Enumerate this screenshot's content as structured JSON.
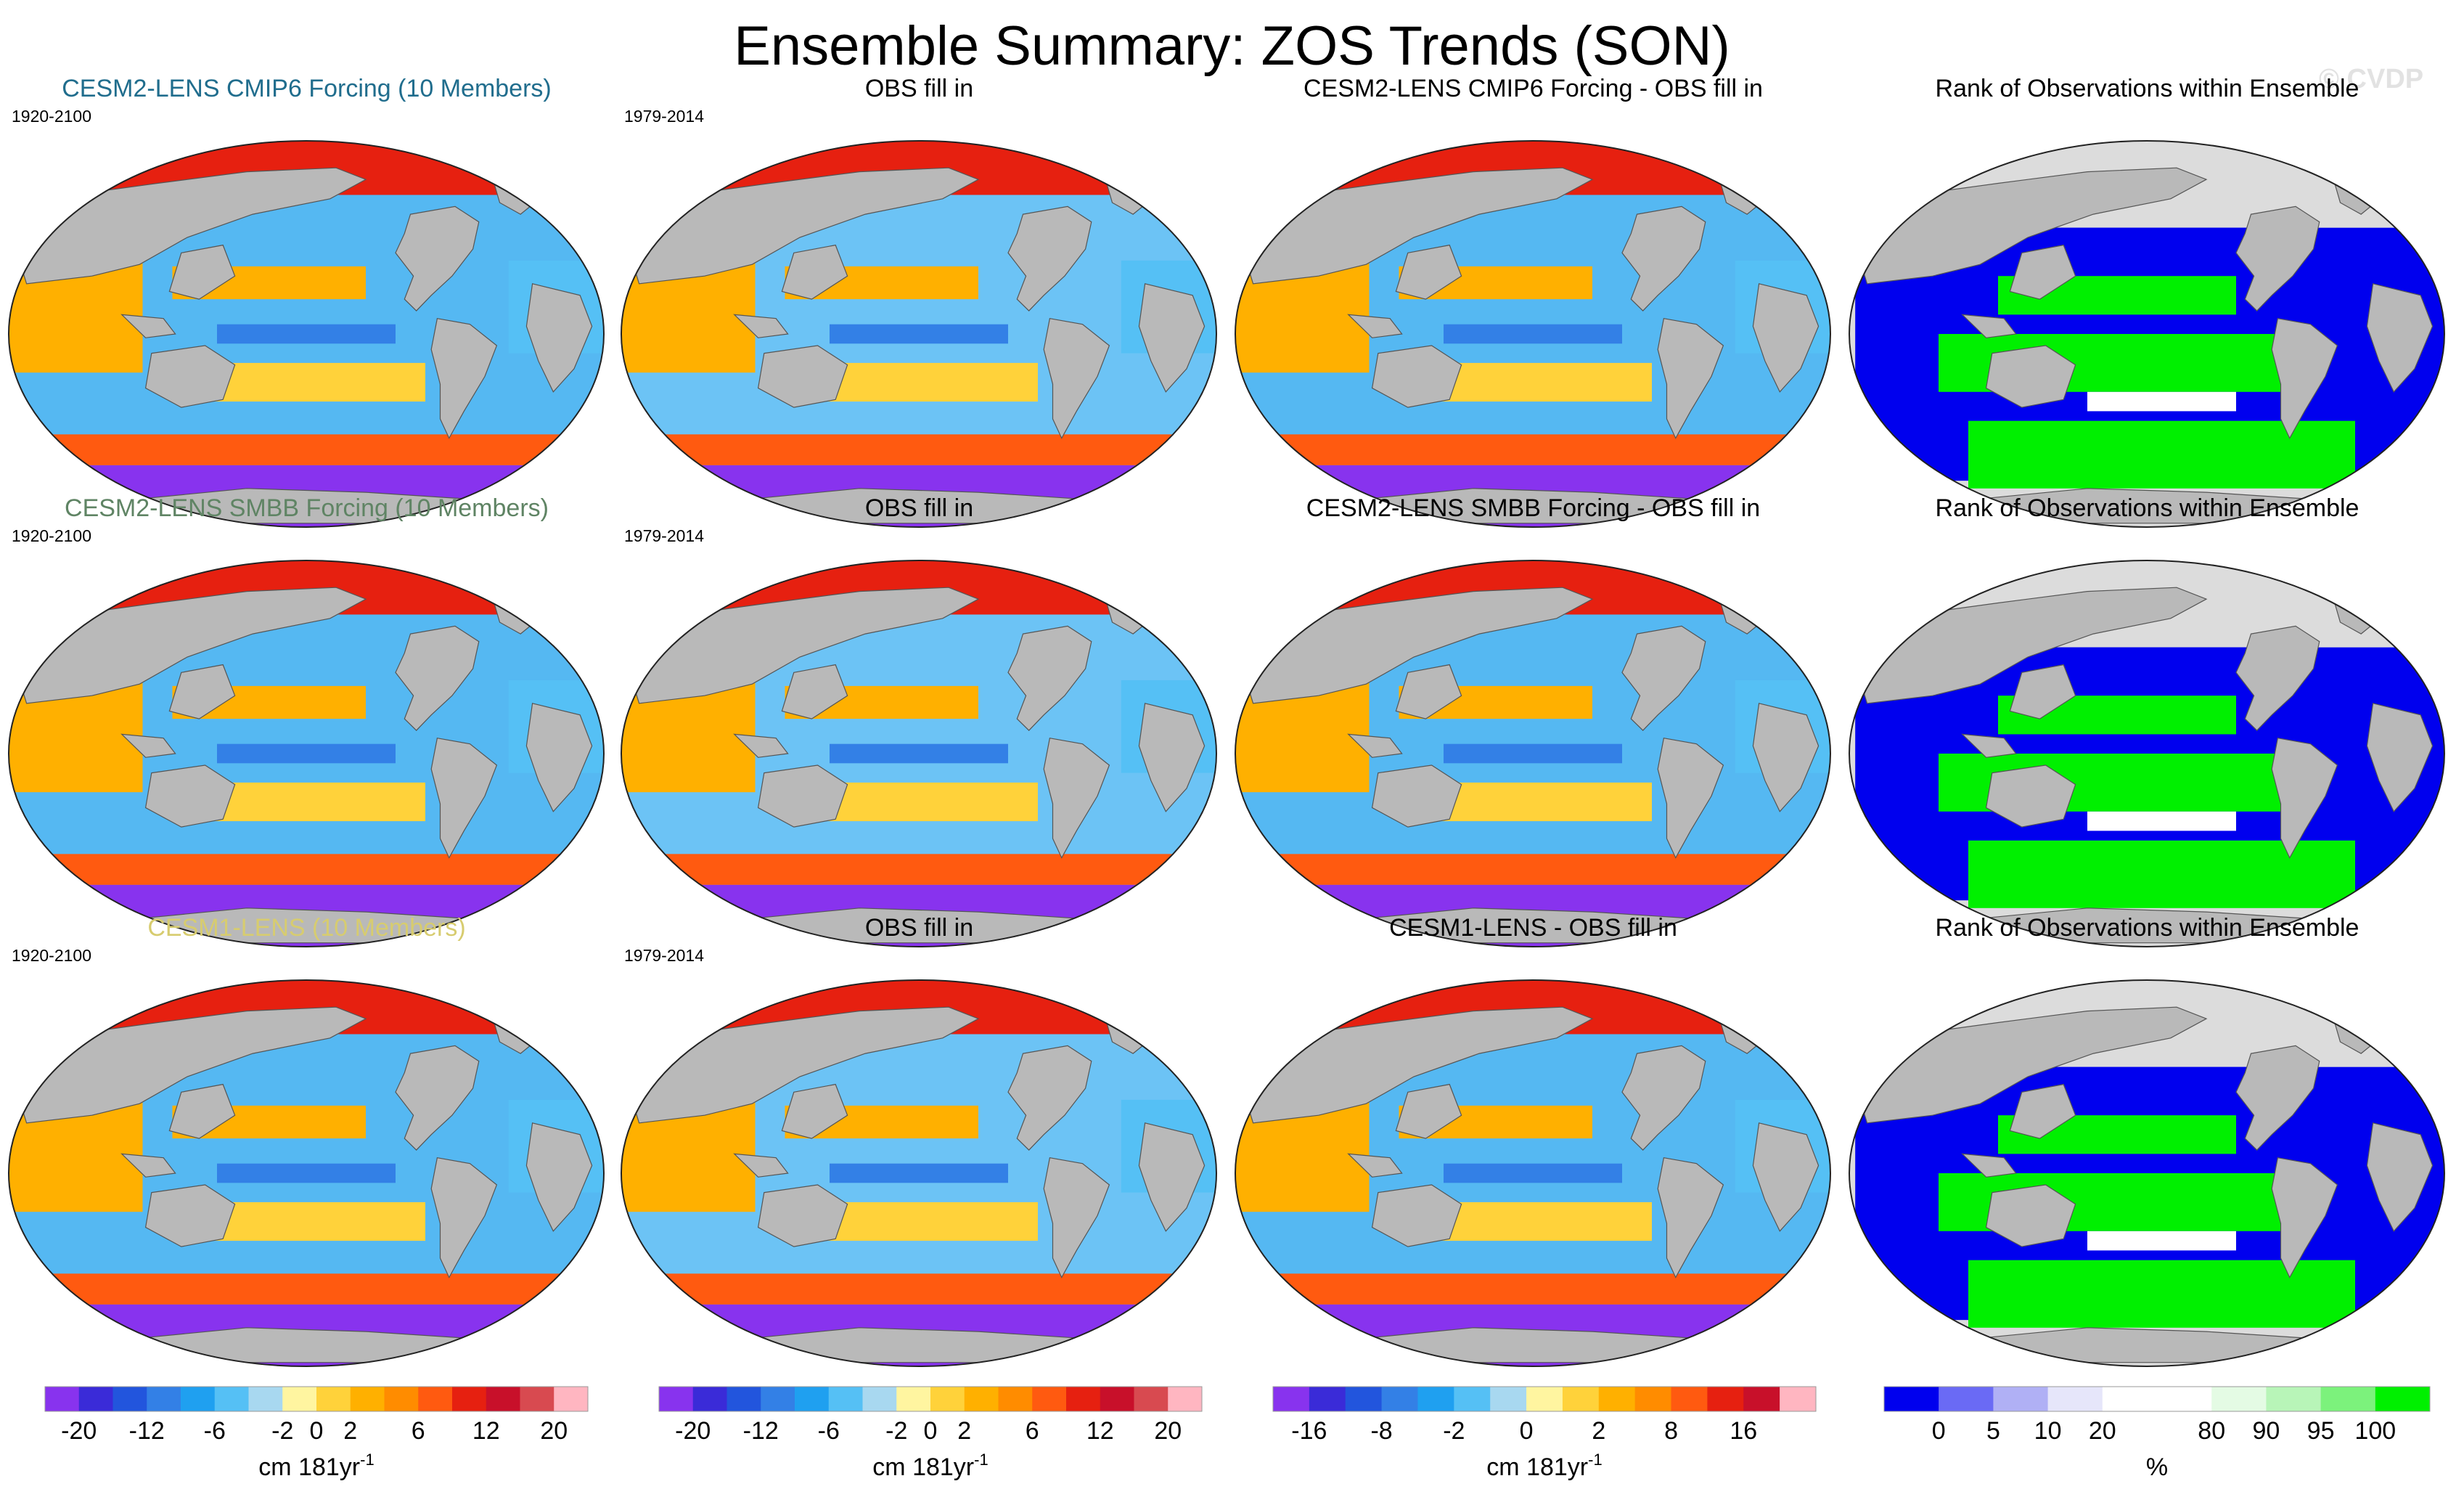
{
  "title": "Ensemble Summary: ZOS Trends (SON)",
  "watermark": "© CVDP",
  "colors": {
    "land": "#b9b9b9",
    "ice": "#dcdcdc",
    "title_row1": "#206d8d",
    "title_row2": "#5f8464",
    "title_row3": "#d7cc6f"
  },
  "rows": [
    {
      "model_title": "CESM2-LENS CMIP6 Forcing (10 Members)",
      "model_period": "1920-2100",
      "obs_title": "OBS fill in",
      "obs_period": "1979-2014",
      "diff_title": "CESM2-LENS CMIP6 Forcing - OBS fill in",
      "rank_title": "Rank of Observations within Ensemble"
    },
    {
      "model_title": "CESM2-LENS SMBB Forcing (10 Members)",
      "model_period": "1920-2100",
      "obs_title": "OBS fill in",
      "obs_period": "1979-2014",
      "diff_title": "CESM2-LENS SMBB Forcing - OBS fill in",
      "rank_title": "Rank of Observations within Ensemble"
    },
    {
      "model_title": "CESM1-LENS (10 Members)",
      "model_period": "1920-2100",
      "obs_title": "OBS fill in",
      "obs_period": "1979-2014",
      "diff_title": "CESM1-LENS - OBS fill in",
      "rank_title": "Rank of Observations within Ensemble"
    }
  ],
  "colorbars": [
    {
      "colors": [
        "#8833ee",
        "#3a2bd8",
        "#2255dd",
        "#3380e6",
        "#1fa0f0",
        "#55c0f5",
        "#a8d8f0",
        "#fff5a0",
        "#ffd23a",
        "#ffb000",
        "#ff8c00",
        "#ff5a10",
        "#e62010",
        "#c8102a",
        "#d84a50",
        "#ffb6c1"
      ],
      "labels": [
        "-20",
        "-12",
        "-6",
        "-2",
        "0",
        "2",
        "6",
        "12",
        "20"
      ],
      "label_slots": [
        1,
        3,
        5,
        7,
        8,
        9,
        11,
        13,
        15
      ],
      "units": "cm 181yr",
      "units_sup": "-1"
    },
    {
      "colors": [
        "#8833ee",
        "#3a2bd8",
        "#2255dd",
        "#3380e6",
        "#1fa0f0",
        "#55c0f5",
        "#a8d8f0",
        "#fff5a0",
        "#ffd23a",
        "#ffb000",
        "#ff8c00",
        "#ff5a10",
        "#e62010",
        "#c8102a",
        "#d84a50",
        "#ffb6c1"
      ],
      "labels": [
        "-20",
        "-12",
        "-6",
        "-2",
        "0",
        "2",
        "6",
        "12",
        "20"
      ],
      "label_slots": [
        1,
        3,
        5,
        7,
        8,
        9,
        11,
        13,
        15
      ],
      "units": "cm 181yr",
      "units_sup": "-1"
    },
    {
      "colors": [
        "#8833ee",
        "#3a2bd8",
        "#2255dd",
        "#3380e6",
        "#1fa0f0",
        "#55c0f5",
        "#a8d8f0",
        "#fff5a0",
        "#ffd23a",
        "#ffb000",
        "#ff8c00",
        "#ff5a10",
        "#e62010",
        "#c8102a",
        "#ffb6c1"
      ],
      "labels": [
        "-16",
        "-8",
        "-2",
        "0",
        "2",
        "8",
        "16"
      ],
      "label_slots": [
        1,
        3,
        5,
        7,
        9,
        11,
        13
      ],
      "units": "cm 181yr",
      "units_sup": "-1"
    },
    {
      "colors": [
        "#0000ee",
        "#6a6af5",
        "#b0b0f5",
        "#e6e6fa",
        "#ffffff",
        "#ffffff",
        "#e4fbe4",
        "#b8f5b8",
        "#7cf27c",
        "#00f000"
      ],
      "labels": [
        "0",
        "5",
        "10",
        "20",
        "80",
        "90",
        "95",
        "100"
      ],
      "label_slots": [
        1,
        2,
        3,
        4,
        6,
        7,
        8,
        9
      ],
      "units": "%",
      "units_sup": ""
    }
  ]
}
